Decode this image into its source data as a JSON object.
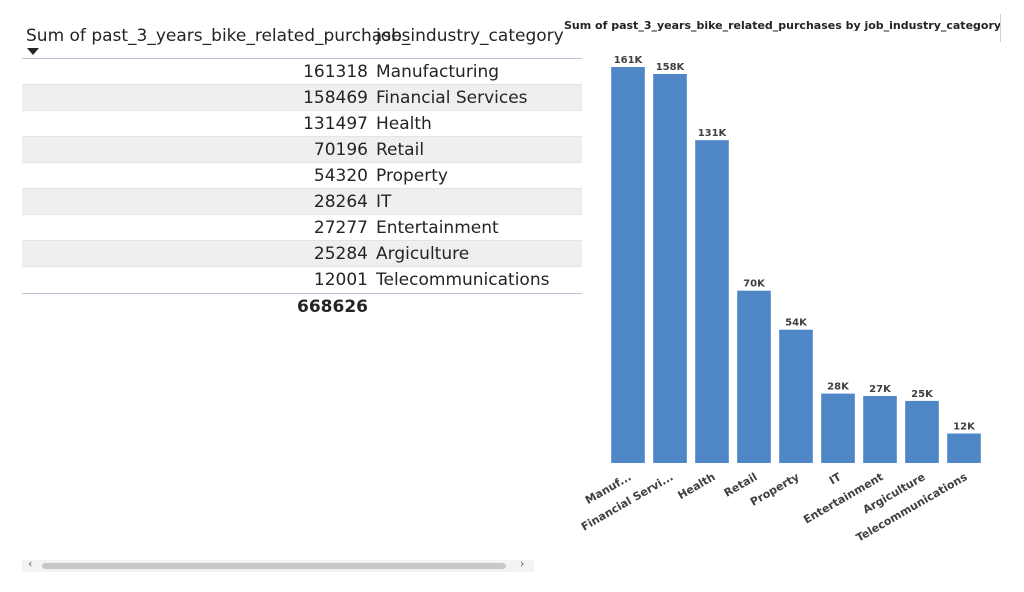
{
  "table": {
    "columns": [
      "Sum of past_3_years_bike_related_purchases",
      "job_industry_category"
    ],
    "rows": [
      {
        "value": "161318",
        "category": "Manufacturing"
      },
      {
        "value": "158469",
        "category": "Financial Services"
      },
      {
        "value": "131497",
        "category": "Health"
      },
      {
        "value": "70196",
        "category": "Retail"
      },
      {
        "value": "54320",
        "category": "Property"
      },
      {
        "value": "28264",
        "category": "IT"
      },
      {
        "value": "27277",
        "category": "Entertainment"
      },
      {
        "value": "25284",
        "category": "Argiculture"
      },
      {
        "value": "12001",
        "category": "Telecommunications"
      }
    ],
    "total": "668626"
  },
  "chart_data": {
    "type": "bar",
    "title": "Sum of past_3_years_bike_related_purchases by job_industry_category",
    "categories": [
      "Manuf...",
      "Financial Servi...",
      "Health",
      "Retail",
      "Property",
      "IT",
      "Entertainment",
      "Argiculture",
      "Telecommunications"
    ],
    "values": [
      161318,
      158469,
      131497,
      70196,
      54320,
      28264,
      27277,
      25284,
      12001
    ],
    "data_labels": [
      "161K",
      "158K",
      "131K",
      "70K",
      "54K",
      "28K",
      "27K",
      "25K",
      "12K"
    ],
    "xlabel": "",
    "ylabel": "",
    "ylim": [
      0,
      161318
    ],
    "grid": false,
    "legend": "none"
  },
  "colors": {
    "bar": "#4e86c6",
    "row_alt": "#efefef",
    "header_border": "#b7c4dc"
  }
}
